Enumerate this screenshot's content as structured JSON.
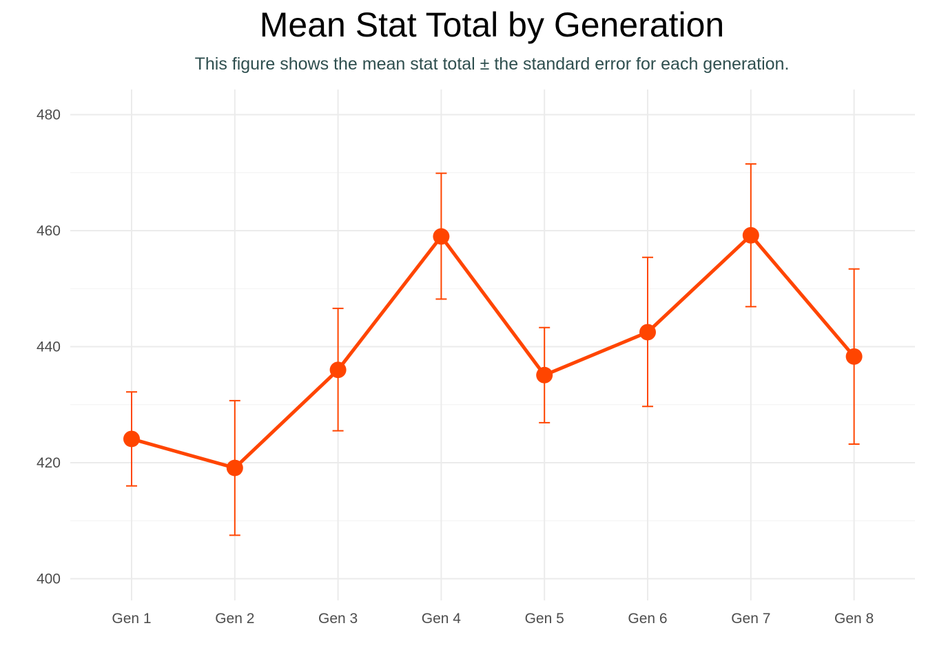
{
  "chart_data": {
    "type": "line",
    "title": "Mean Stat Total by Generation",
    "subtitle": "This figure shows the mean stat total ± the standard error for each generation.",
    "xlabel": "",
    "ylabel": "",
    "categories": [
      "Gen 1",
      "Gen 2",
      "Gen 3",
      "Gen 4",
      "Gen 5",
      "Gen 6",
      "Gen 7",
      "Gen 8"
    ],
    "values": [
      424.1,
      419.1,
      436.0,
      459.0,
      435.1,
      442.5,
      459.2,
      438.3
    ],
    "error_low": [
      416.0,
      407.5,
      425.5,
      448.2,
      426.9,
      429.7,
      446.9,
      423.2
    ],
    "error_high": [
      432.2,
      430.7,
      446.6,
      469.9,
      443.3,
      455.4,
      471.5,
      453.4
    ],
    "ylim": [
      396,
      484
    ],
    "yticks": [
      400,
      420,
      440,
      460,
      480
    ],
    "grid": true,
    "legend": "none",
    "color": "#ff4500"
  }
}
